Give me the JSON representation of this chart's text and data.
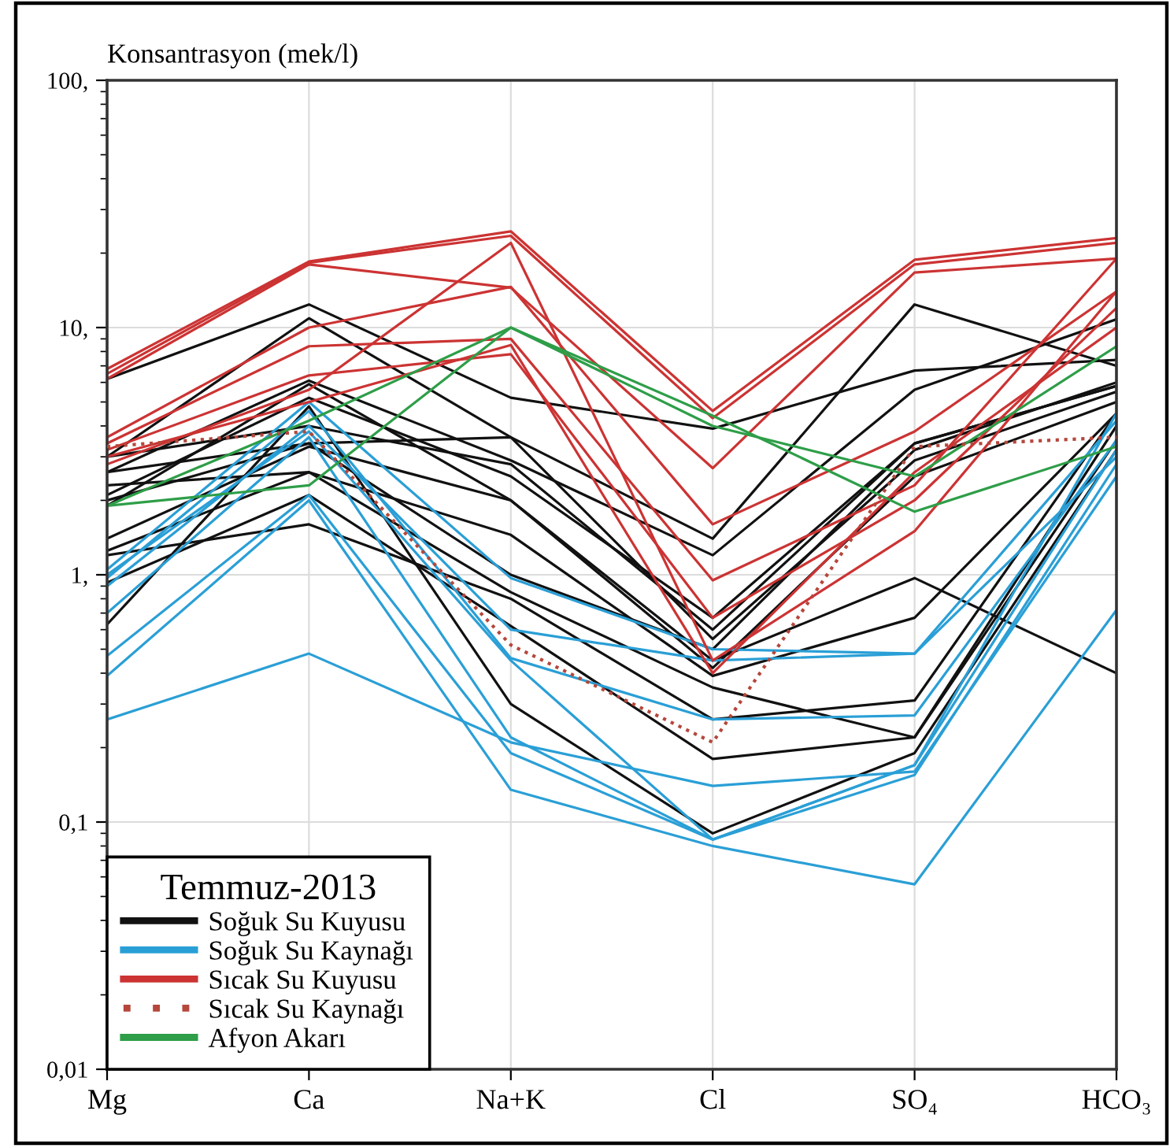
{
  "chart_data": {
    "type": "line",
    "ylabel": "Konsantrasyon (mek/l)",
    "legend_title": "Temmuz-2013",
    "categories": [
      "Mg",
      "Ca",
      "Na+K",
      "Cl",
      "SO₄",
      "HCO₃"
    ],
    "log": true,
    "ylim": [
      0.01,
      100
    ],
    "yticks": [
      {
        "value": 0.01,
        "label": "0,01"
      },
      {
        "value": 0.1,
        "label": "0,1"
      },
      {
        "value": 1,
        "label": "1,"
      },
      {
        "value": 10,
        "label": "10,"
      },
      {
        "value": 100,
        "label": "100,"
      }
    ],
    "grid": true,
    "legend": "bottom left",
    "line_style": "solid",
    "series": [
      {
        "name": "Soğuk Su Kuyusu",
        "color": "#111111",
        "values": [
          6.2,
          12.4,
          5.2,
          3.9,
          6.7,
          7.4
        ]
      },
      {
        "color": "#111111",
        "values": [
          3.0,
          10.9,
          3.6,
          1.4,
          12.4,
          7.0
        ]
      },
      {
        "color": "#111111",
        "values": [
          2.6,
          6.1,
          2.9,
          1.2,
          5.6,
          10.8
        ]
      },
      {
        "color": "#111111",
        "values": [
          2.1,
          5.2,
          2.5,
          0.67,
          3.4,
          5.8
        ]
      },
      {
        "color": "#111111",
        "values": [
          2.0,
          3.4,
          3.6,
          0.55,
          2.9,
          5.5
        ]
      },
      {
        "color": "#111111",
        "values": [
          1.4,
          3.3,
          2.0,
          0.45,
          0.97,
          0.4
        ]
      },
      {
        "color": "#111111",
        "values": [
          1.25,
          2.6,
          1.45,
          0.39,
          0.67,
          4.5
        ]
      },
      {
        "color": "#111111",
        "values": [
          1.2,
          1.6,
          0.8,
          0.26,
          0.31,
          4.5
        ]
      },
      {
        "color": "#111111",
        "values": [
          0.93,
          2.1,
          0.62,
          0.18,
          0.22,
          3.5
        ]
      },
      {
        "color": "#111111",
        "values": [
          0.63,
          4.8,
          0.3,
          0.09,
          0.19,
          3.2
        ]
      },
      {
        "color": "#111111",
        "values": [
          2.6,
          3.4,
          1.0,
          0.5,
          3.2,
          6.0
        ]
      },
      {
        "color": "#111111",
        "values": [
          1.9,
          5.9,
          2.0,
          0.42,
          2.5,
          5.0
        ]
      },
      {
        "color": "#111111",
        "values": [
          3.0,
          4.0,
          2.8,
          0.6,
          3.4,
          5.8
        ]
      },
      {
        "color": "#111111",
        "values": [
          2.3,
          2.6,
          0.85,
          0.35,
          0.22,
          4.0
        ]
      },
      {
        "name": "Soğuk Su Kaynağı",
        "color": "#2a9fd6",
        "values": [
          1.05,
          5.0,
          0.97,
          0.5,
          0.48,
          4.2
        ]
      },
      {
        "color": "#2a9fd6",
        "values": [
          0.97,
          4.6,
          0.46,
          0.26,
          0.27,
          3.5
        ]
      },
      {
        "color": "#2a9fd6",
        "values": [
          0.9,
          4.0,
          0.6,
          0.45,
          0.48,
          3.0
        ]
      },
      {
        "color": "#2a9fd6",
        "values": [
          0.7,
          3.6,
          0.22,
          0.085,
          0.17,
          3.2
        ]
      },
      {
        "color": "#2a9fd6",
        "values": [
          0.47,
          2.1,
          0.19,
          0.085,
          0.155,
          2.8
        ]
      },
      {
        "color": "#2a9fd6",
        "values": [
          0.39,
          2.0,
          0.135,
          0.08,
          0.056,
          0.72
        ]
      },
      {
        "color": "#2a9fd6",
        "values": [
          0.26,
          0.48,
          0.21,
          0.14,
          0.16,
          2.5
        ]
      },
      {
        "color": "#2a9fd6",
        "values": [
          1.0,
          3.8,
          0.45,
          0.085,
          0.17,
          4.5
        ]
      },
      {
        "name": "Sıcak Su Kuyusu",
        "color": "#cc3333",
        "values": [
          6.8,
          18.5,
          24.5,
          4.6,
          18.8,
          23
        ]
      },
      {
        "color": "#cc3333",
        "values": [
          6.5,
          18.3,
          23.5,
          4.3,
          18,
          22
        ]
      },
      {
        "color": "#cc3333",
        "values": [
          6.2,
          18,
          14.5,
          2.7,
          16.7,
          19
        ]
      },
      {
        "color": "#cc3333",
        "values": [
          3.6,
          10,
          14.6,
          1.6,
          3.8,
          14
        ]
      },
      {
        "color": "#cc3333",
        "values": [
          3.4,
          8.4,
          9.0,
          0.95,
          2.3,
          19
        ]
      },
      {
        "color": "#cc3333",
        "values": [
          3.2,
          6.4,
          7.8,
          0.67,
          2.0,
          12
        ]
      },
      {
        "color": "#cc3333",
        "values": [
          2.8,
          5.6,
          22,
          0.45,
          1.5,
          14
        ]
      },
      {
        "color": "#cc3333",
        "values": [
          3.0,
          5.0,
          8.5,
          0.4,
          2.6,
          10
        ]
      },
      {
        "name": "Sıcak Su Kaynağı",
        "color": "#b5473b",
        "line_style": "dotted",
        "values": [
          3.3,
          3.8,
          0.52,
          0.21,
          3.3,
          3.6
        ]
      },
      {
        "name": "Afyon Akarı",
        "color": "#2e9e48",
        "values": [
          1.9,
          2.3,
          10,
          4.4,
          1.8,
          3.3
        ]
      },
      {
        "color": "#2e9e48",
        "values": [
          1.9,
          4.2,
          10,
          4.0,
          2.5,
          8.4
        ]
      }
    ]
  }
}
